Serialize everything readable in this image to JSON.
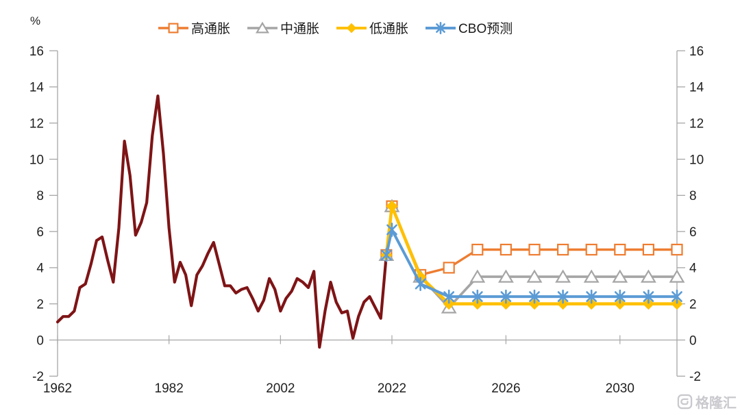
{
  "page": {
    "background": "#ffffff"
  },
  "watermark": {
    "text": "格隆汇",
    "icon": "gelonghui-logo"
  },
  "chart_data": {
    "type": "line",
    "title": "",
    "unit_label": "%",
    "ylim": [
      -2,
      16
    ],
    "ytick_step": 2,
    "y_ticks": [
      -2,
      0,
      2,
      4,
      6,
      8,
      10,
      12,
      14,
      16
    ],
    "x_ticks": [
      1962,
      1982,
      2002,
      2022,
      2026,
      2030
    ],
    "x_scale_break_year": 2022,
    "x_end_year": 2032,
    "grid": false,
    "legend_position": "top",
    "axis_color": "#A6A6A6",
    "label_color": "#1f1f1f",
    "series": [
      {
        "id": "historical-inflation",
        "name": "",
        "legend": false,
        "marker": "none",
        "color": "#7E1416",
        "x_start": 1962,
        "values": [
          1.0,
          1.3,
          1.3,
          1.6,
          2.9,
          3.1,
          4.2,
          5.5,
          5.7,
          4.4,
          3.2,
          6.2,
          11.0,
          9.1,
          5.8,
          6.5,
          7.6,
          11.3,
          13.5,
          10.3,
          6.2,
          3.2,
          4.3,
          3.6,
          1.9,
          3.6,
          4.1,
          4.8,
          5.4,
          4.2,
          3.0,
          3.0,
          2.6,
          2.8,
          2.9,
          2.3,
          1.6,
          2.2,
          3.4,
          2.8,
          1.6,
          2.3,
          2.7,
          3.4,
          3.2,
          2.9,
          3.8,
          -0.4,
          1.6,
          3.2,
          2.1,
          1.5,
          1.6,
          0.1,
          1.3,
          2.1,
          2.4,
          1.8,
          1.2,
          4.7
        ]
      },
      {
        "id": "high-inflation",
        "name": "高通胀",
        "legend": true,
        "marker": "square",
        "color": "#ED7D31",
        "x_start": 2021,
        "values": [
          4.7,
          7.4,
          3.6,
          4.0,
          5.0,
          5.0,
          5.0,
          5.0,
          5.0,
          5.0,
          5.0,
          5.0
        ]
      },
      {
        "id": "mid-inflation",
        "name": "中通胀",
        "legend": true,
        "marker": "triangle",
        "color": "#A5A5A5",
        "x_start": 2021,
        "values": [
          4.7,
          7.4,
          3.5,
          1.8,
          3.5,
          3.5,
          3.5,
          3.5,
          3.5,
          3.5,
          3.5,
          3.5
        ]
      },
      {
        "id": "low-inflation",
        "name": "低通胀",
        "legend": true,
        "marker": "diamond",
        "color": "#FFC000",
        "x_start": 2021,
        "values": [
          4.7,
          7.4,
          3.5,
          2.0,
          2.0,
          2.0,
          2.0,
          2.0,
          2.0,
          2.0,
          2.0,
          2.0
        ]
      },
      {
        "id": "cbo-forecast",
        "name": "CBO预测",
        "legend": true,
        "marker": "asterisk",
        "color": "#5B9BD5",
        "x_start": 2021,
        "values": [
          4.7,
          6.1,
          3.1,
          2.4,
          2.4,
          2.4,
          2.4,
          2.4,
          2.4,
          2.4,
          2.4,
          2.4
        ]
      }
    ]
  }
}
